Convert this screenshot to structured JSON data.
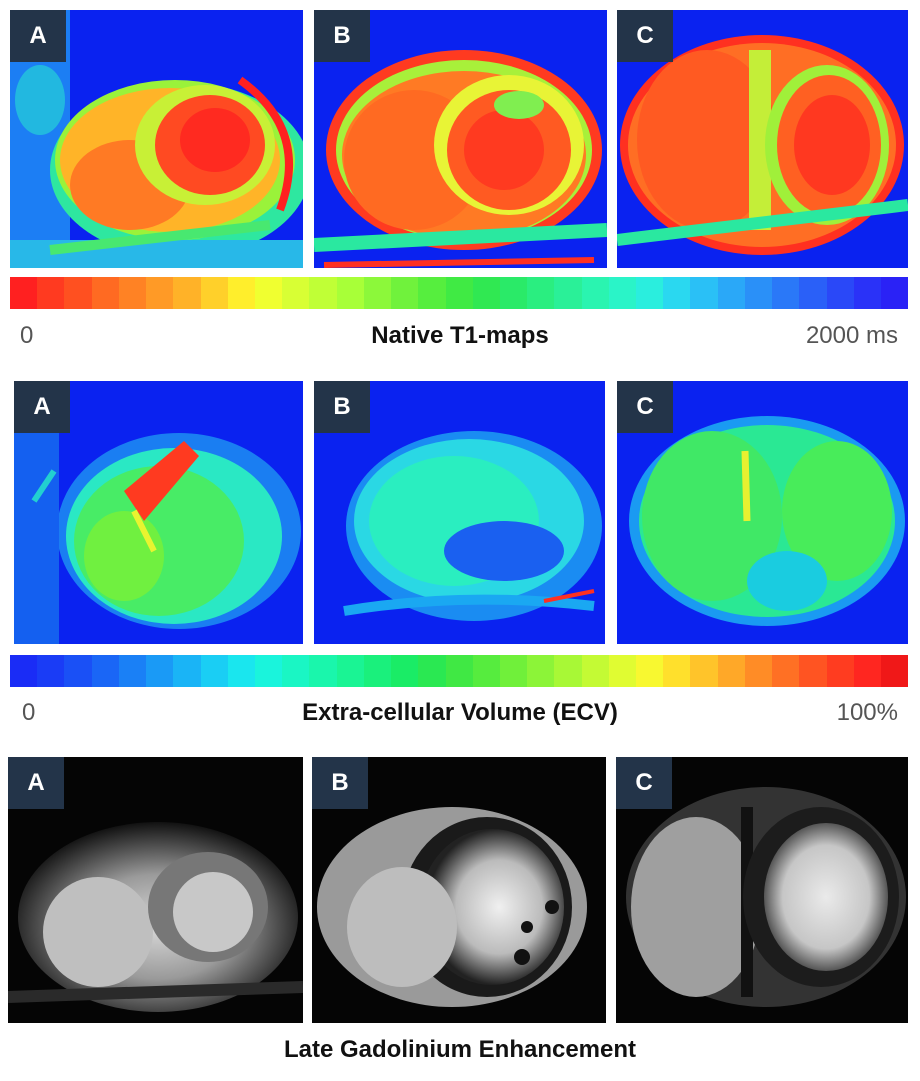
{
  "t1_section": {
    "title": "Native T1-maps",
    "min_label": "0",
    "max_label": "2000 ms",
    "colorbar_stops": [
      "#ff2020",
      "#ff3a20",
      "#ff5020",
      "#ff6a22",
      "#ff8224",
      "#ff9a26",
      "#ffb228",
      "#ffd02a",
      "#ffee2c",
      "#f0ff30",
      "#d8ff34",
      "#c0ff36",
      "#a8ff38",
      "#8cf83a",
      "#70f23c",
      "#56ee3e",
      "#40ea44",
      "#30e852",
      "#2aea68",
      "#2aee80",
      "#2af098",
      "#2af4b0",
      "#2af4c8",
      "#2aeede",
      "#2ad8f0",
      "#2ac0f6",
      "#2aa8f8",
      "#2a90f8",
      "#2a78f8",
      "#2a60f8",
      "#2a48f8",
      "#2a32f8",
      "#2a22f6"
    ],
    "panels": [
      {
        "label": "A"
      },
      {
        "label": "B"
      },
      {
        "label": "C"
      }
    ]
  },
  "ecv_section": {
    "title": "Extra-cellular Volume (ECV)",
    "min_label": "0",
    "max_label": "100%",
    "colorbar_stops": [
      "#1a2cf6",
      "#1a3cf6",
      "#1a50f6",
      "#1a66f6",
      "#1a80f6",
      "#1a9af6",
      "#1ab4f6",
      "#1acef4",
      "#1ae6ee",
      "#1af4dc",
      "#1af6c4",
      "#1af6ac",
      "#1af494",
      "#1af07c",
      "#1aec66",
      "#2ae852",
      "#40e844",
      "#56ec3e",
      "#70f03a",
      "#8cf438",
      "#a8f836",
      "#c4fa34",
      "#e0fc32",
      "#f8f830",
      "#ffe02c",
      "#ffc42a",
      "#ffa828",
      "#ff8c26",
      "#ff7024",
      "#ff5422",
      "#ff3c20",
      "#ff2620",
      "#f01818"
    ],
    "panels": [
      {
        "label": "A"
      },
      {
        "label": "B"
      },
      {
        "label": "C"
      }
    ]
  },
  "lge_section": {
    "title": "Late Gadolinium Enhancement",
    "panels": [
      {
        "label": "A"
      },
      {
        "label": "B"
      },
      {
        "label": "C"
      }
    ]
  }
}
